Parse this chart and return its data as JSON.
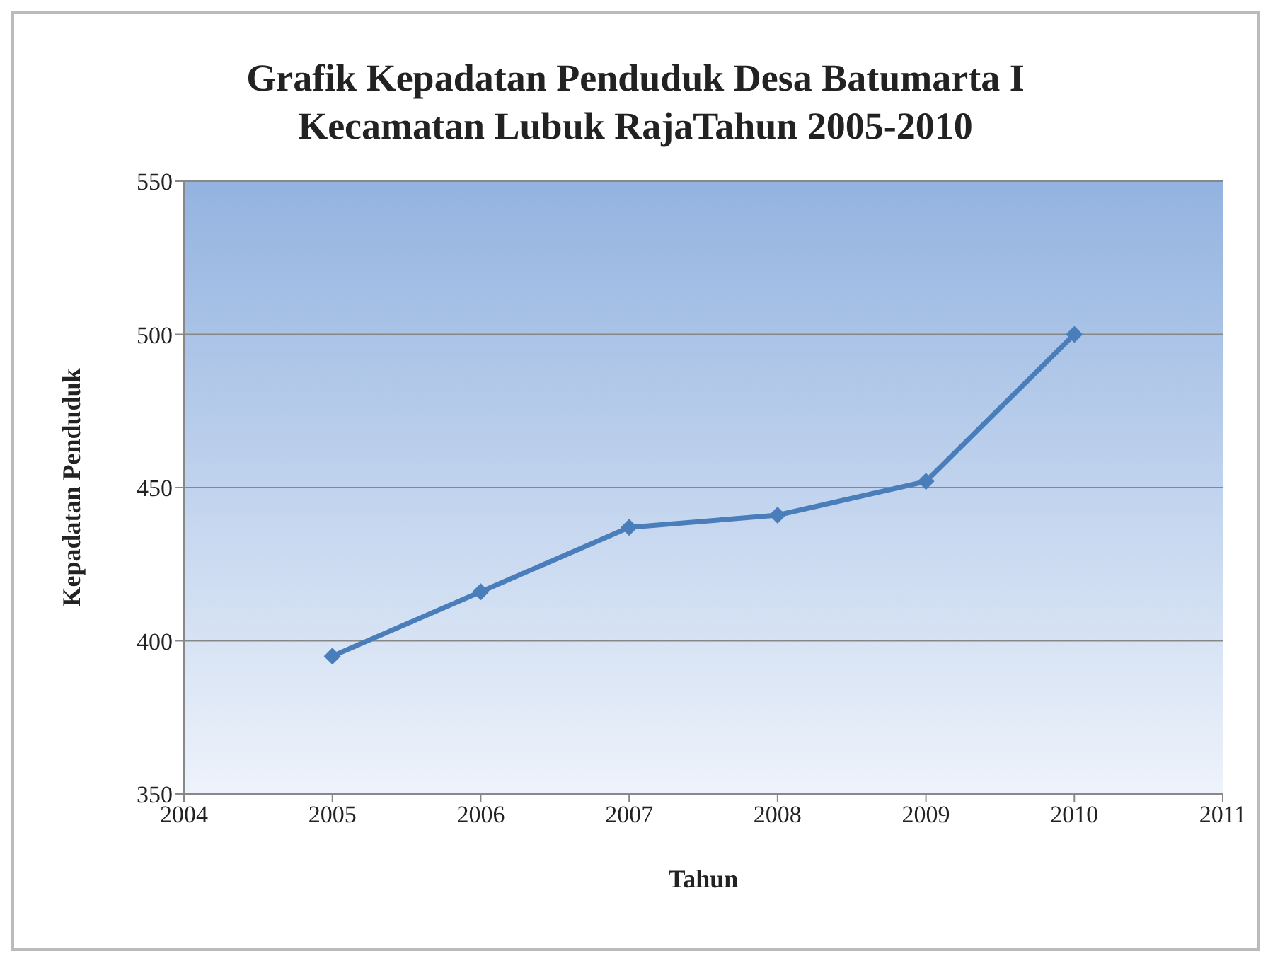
{
  "chart_data": {
    "type": "line",
    "title": "Grafik Kepadatan Penduduk Desa Batumarta I\nKecamatan Lubuk RajaTahun 2005-2010",
    "xlabel": "Tahun",
    "ylabel": "Kepadatan Penduduk",
    "x": [
      2005,
      2006,
      2007,
      2008,
      2009,
      2010
    ],
    "series": [
      {
        "color": "#4a7ebb",
        "values": [
          395,
          416,
          437,
          441,
          452,
          500
        ]
      }
    ],
    "xlim": [
      2004,
      2011
    ],
    "xticks": [
      2004,
      2005,
      2006,
      2007,
      2008,
      2009,
      2010,
      2011
    ],
    "ylim": [
      350,
      550
    ],
    "yticks": [
      350,
      400,
      450,
      500,
      550
    ],
    "grid": "y",
    "legend": false,
    "marker": "diamond",
    "line_style": "solid"
  }
}
